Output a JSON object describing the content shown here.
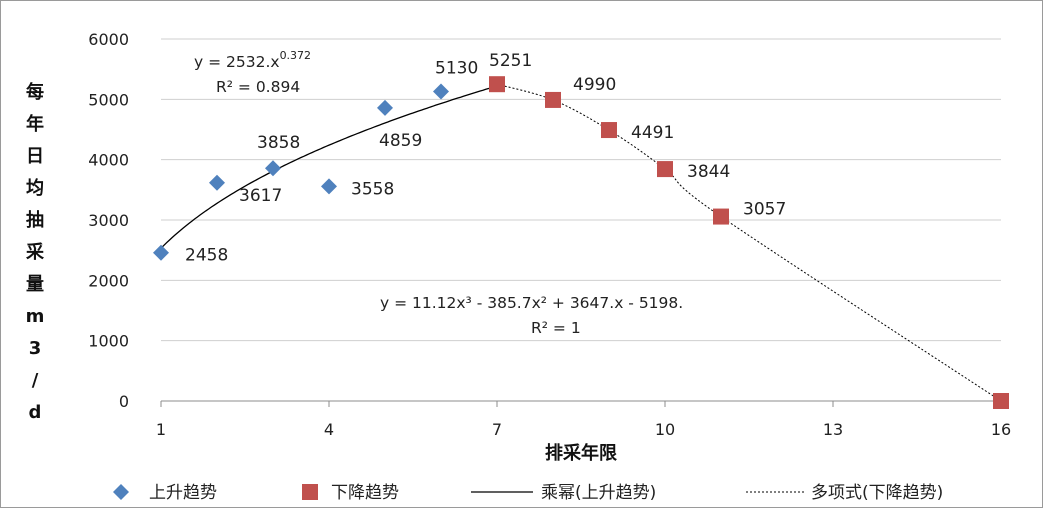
{
  "chart_data": {
    "type": "scatter",
    "title": "",
    "xlabel": "排采年限",
    "ylabel": "每年日均抽采量m3/d",
    "xlim": [
      1,
      16
    ],
    "ylim": [
      0,
      6000
    ],
    "x_ticks": [
      "1",
      "4",
      "7",
      "10",
      "13",
      "16"
    ],
    "y_ticks": [
      "0",
      "1000",
      "2000",
      "3000",
      "4000",
      "5000",
      "6000"
    ],
    "grid": true,
    "legend_position": "bottom",
    "series": [
      {
        "name": "上升趋势",
        "marker": "diamond",
        "color": "#4f81bd",
        "x": [
          1,
          2,
          3,
          4,
          5,
          6
        ],
        "y": [
          2458,
          3617,
          3858,
          3558,
          4859,
          5130
        ],
        "labels": [
          "2458",
          "3617",
          "3858",
          "3558",
          "4859",
          "5130"
        ]
      },
      {
        "name": "下降趋势",
        "marker": "square",
        "color": "#c0504d",
        "x": [
          7,
          8,
          9,
          10,
          11,
          16
        ],
        "y": [
          5251,
          4990,
          4491,
          3844,
          3057,
          0
        ],
        "labels": [
          "5251",
          "4990",
          "4491",
          "3844",
          "3057",
          ""
        ]
      }
    ],
    "trendlines": [
      {
        "name": "乘幂(上升趋势)",
        "type": "power",
        "a": 2532,
        "b": 0.372,
        "equation": "y = 2532.x",
        "equation_exp": "0.372",
        "r2": "R² = 0.894",
        "color": "#000000",
        "style": "solid"
      },
      {
        "name": "多项式(下降趋势)",
        "type": "polynomial",
        "coefficients": [
          11.12,
          -385.7,
          3647,
          -5198
        ],
        "equation": "y = 11.12x³ - 385.7x² + 3647.x - 5198.",
        "r2": "R² = 1",
        "color": "#000000",
        "style": "dotted"
      }
    ],
    "legend": [
      "上升趋势",
      "下降趋势",
      "乘幂(上升趋势)",
      "多项式(下降趋势)"
    ]
  }
}
